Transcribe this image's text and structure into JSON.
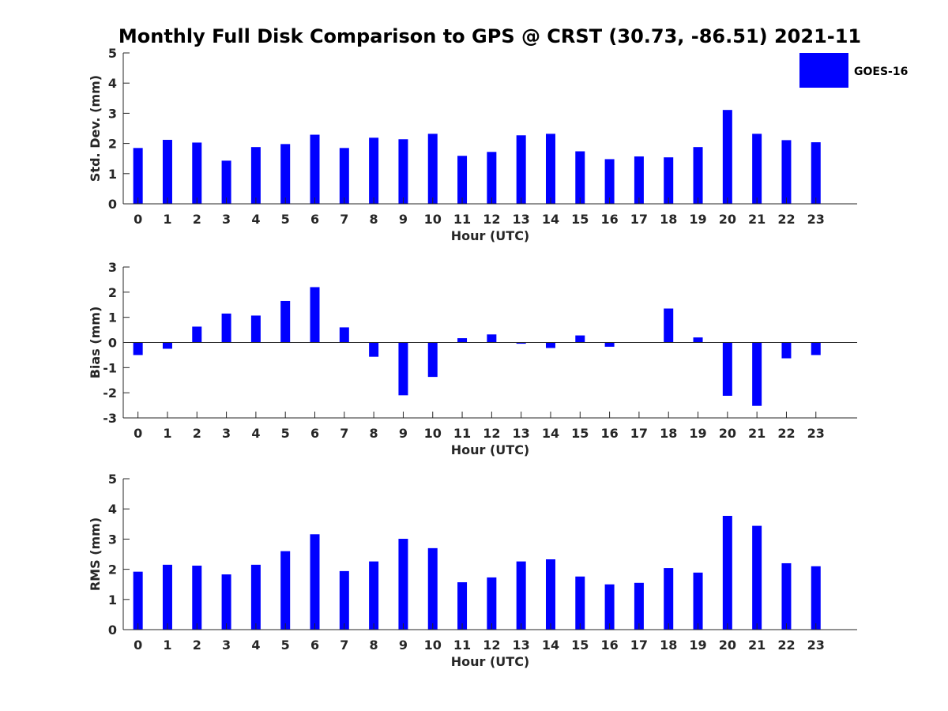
{
  "figure_title": "Monthly Full Disk Comparison to GPS @ CRST (30.73, -86.51) 2021-11",
  "legend": {
    "label": "GOES-16",
    "color": "#0000ff",
    "placement": "top-right"
  },
  "chart_data": [
    {
      "type": "bar",
      "xlabel": "Hour (UTC)",
      "ylabel": "Std. Dev. (mm)",
      "ylim": [
        0,
        5
      ],
      "yticks": [
        0,
        1,
        2,
        3,
        4,
        5
      ],
      "categories": [
        "0",
        "1",
        "2",
        "3",
        "4",
        "5",
        "6",
        "7",
        "8",
        "9",
        "10",
        "11",
        "12",
        "13",
        "14",
        "15",
        "16",
        "17",
        "18",
        "19",
        "20",
        "21",
        "22",
        "23"
      ],
      "series": [
        {
          "name": "GOES-16",
          "values": [
            1.85,
            2.12,
            2.03,
            1.43,
            1.88,
            1.98,
            2.29,
            1.85,
            2.19,
            2.14,
            2.32,
            1.59,
            1.72,
            2.27,
            2.32,
            1.74,
            1.48,
            1.57,
            1.54,
            1.88,
            3.11,
            2.32,
            2.11,
            2.04
          ]
        }
      ]
    },
    {
      "type": "bar",
      "xlabel": "Hour (UTC)",
      "ylabel": "Bias (mm)",
      "ylim": [
        -3,
        3
      ],
      "yticks": [
        -3,
        -2,
        -1,
        0,
        1,
        2,
        3
      ],
      "categories": [
        "0",
        "1",
        "2",
        "3",
        "4",
        "5",
        "6",
        "7",
        "8",
        "9",
        "10",
        "11",
        "12",
        "13",
        "14",
        "15",
        "16",
        "17",
        "18",
        "19",
        "20",
        "21",
        "22",
        "23"
      ],
      "series": [
        {
          "name": "GOES-16",
          "values": [
            -0.5,
            -0.25,
            0.63,
            1.15,
            1.07,
            1.65,
            2.2,
            0.6,
            -0.57,
            -2.1,
            -1.37,
            0.17,
            0.32,
            -0.05,
            -0.22,
            0.28,
            -0.17,
            0.0,
            1.35,
            0.2,
            -2.12,
            -2.52,
            -0.63,
            -0.5
          ]
        }
      ]
    },
    {
      "type": "bar",
      "xlabel": "Hour (UTC)",
      "ylabel": "RMS (mm)",
      "ylim": [
        0,
        5
      ],
      "yticks": [
        0,
        1,
        2,
        3,
        4,
        5
      ],
      "categories": [
        "0",
        "1",
        "2",
        "3",
        "4",
        "5",
        "6",
        "7",
        "8",
        "9",
        "10",
        "11",
        "12",
        "13",
        "14",
        "15",
        "16",
        "17",
        "18",
        "19",
        "20",
        "21",
        "22",
        "23"
      ],
      "series": [
        {
          "name": "GOES-16",
          "values": [
            1.92,
            2.15,
            2.12,
            1.83,
            2.15,
            2.6,
            3.16,
            1.94,
            2.26,
            3.01,
            2.7,
            1.57,
            1.73,
            2.26,
            2.33,
            1.76,
            1.5,
            1.55,
            2.04,
            1.89,
            3.77,
            3.44,
            2.2,
            2.1
          ]
        }
      ]
    }
  ]
}
